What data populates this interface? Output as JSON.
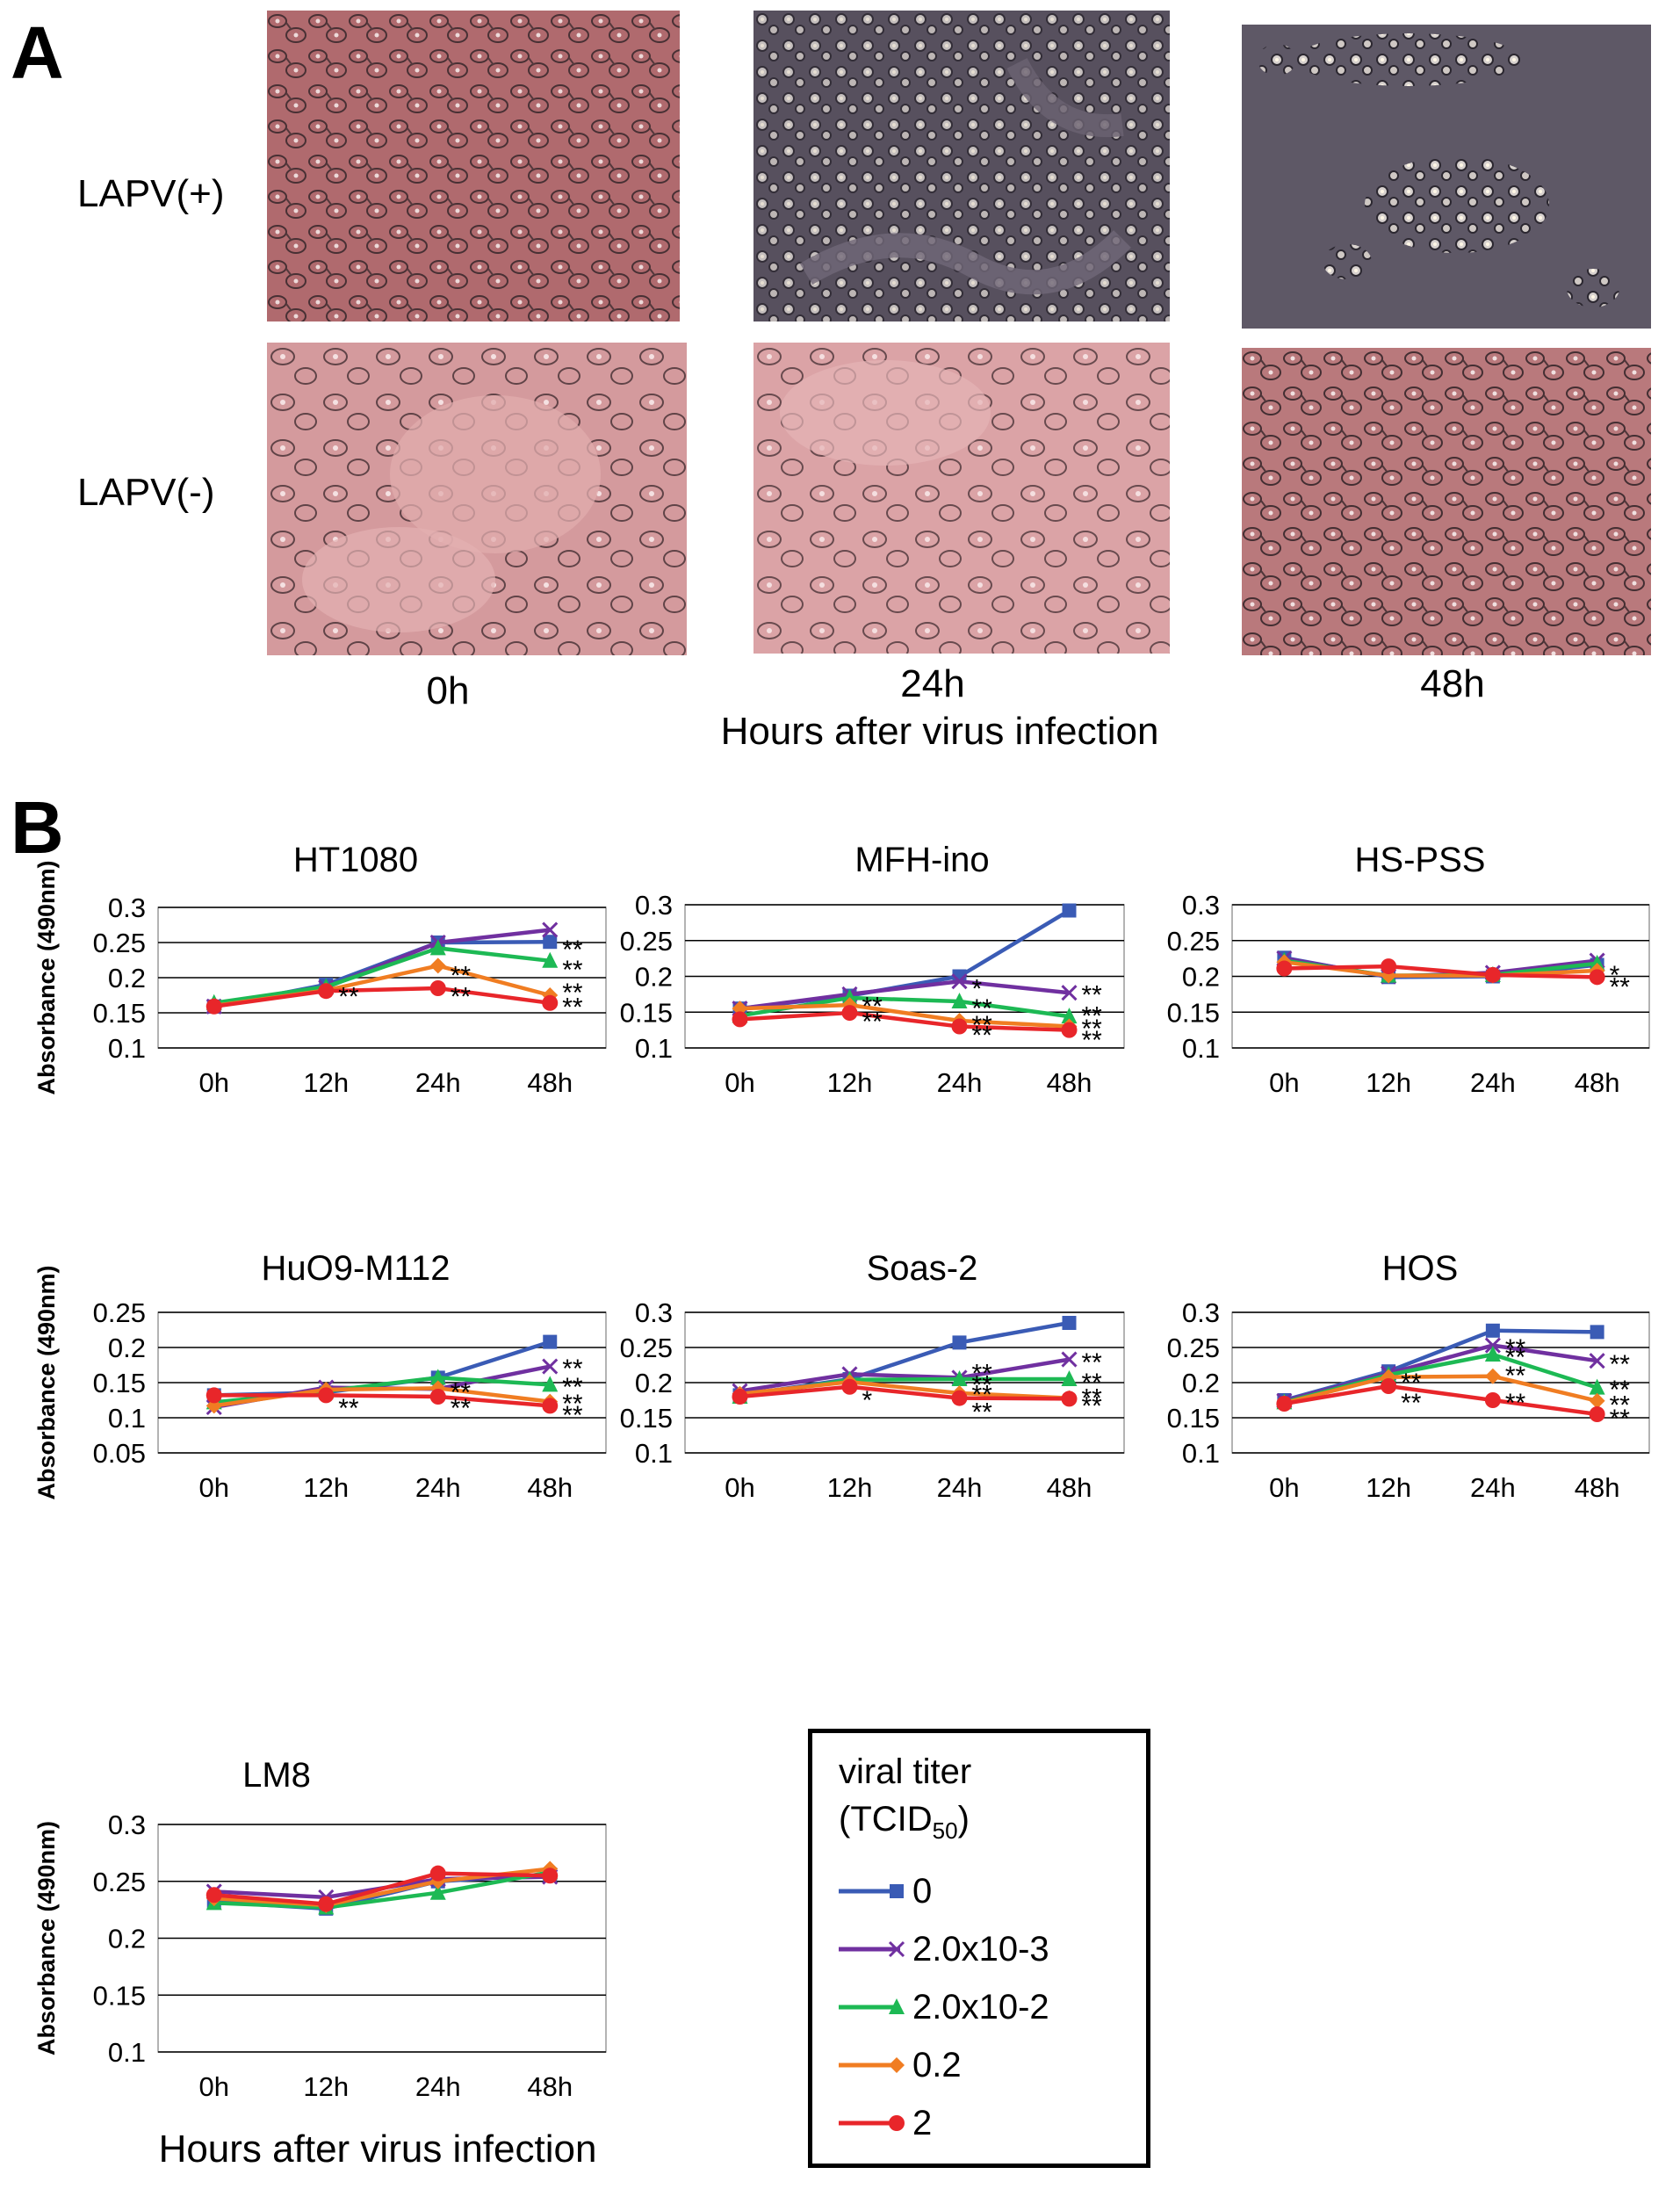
{
  "panel_a": {
    "letter": "A",
    "row_labels": [
      "LAPV(+)",
      "LAPV(-)"
    ],
    "time_labels": [
      "0h",
      "24h",
      "48h"
    ],
    "x_caption": "Hours after virus infection"
  },
  "panel_b": {
    "letter": "B",
    "x_caption": "Hours after virus infection",
    "legend": {
      "title_line1": "viral titer",
      "title_line2_main": "(TCID",
      "title_line2_sub": "50",
      "title_line2_end": ")",
      "entries": [
        "0",
        "2.0x10-3",
        "2.0x10-2",
        "0.2",
        "2"
      ]
    }
  },
  "series_style": [
    {
      "name": "0",
      "color": "#3A5BB5",
      "marker": "square"
    },
    {
      "name": "2.0x10-3",
      "color": "#7030A0",
      "marker": "x"
    },
    {
      "name": "2.0x10-2",
      "color": "#1DB954",
      "marker": "triangle"
    },
    {
      "name": "0.2",
      "color": "#F07D22",
      "marker": "diamond"
    },
    {
      "name": "2",
      "color": "#E8262A",
      "marker": "circle"
    }
  ],
  "chart_data": [
    {
      "type": "line",
      "title": "HT1080",
      "ylabel": "Absorbance (490nm)",
      "categories": [
        "0h",
        "12h",
        "24h",
        "48h"
      ],
      "ylim": [
        0.1,
        0.3
      ],
      "yticks": [
        "0.1",
        "0.15",
        "0.2",
        "0.25",
        "0.3"
      ],
      "series": [
        {
          "name": "0",
          "values": [
            0.159,
            0.19,
            0.25,
            0.251
          ]
        },
        {
          "name": "2.0x10-3",
          "values": [
            0.159,
            0.186,
            0.25,
            0.268
          ]
        },
        {
          "name": "2.0x10-2",
          "values": [
            0.164,
            0.187,
            0.242,
            0.224
          ]
        },
        {
          "name": "0.2",
          "values": [
            0.16,
            0.182,
            0.217,
            0.175
          ]
        },
        {
          "name": "2",
          "values": [
            0.159,
            0.181,
            0.185,
            0.164
          ]
        }
      ],
      "annotations": [
        {
          "cat": 1,
          "y": 0.173,
          "text": "**"
        },
        {
          "cat": 2,
          "y": 0.203,
          "text": "**"
        },
        {
          "cat": 2,
          "y": 0.173,
          "text": "**"
        },
        {
          "cat": 3,
          "y": 0.24,
          "text": "**"
        },
        {
          "cat": 3,
          "y": 0.211,
          "text": "**"
        },
        {
          "cat": 3,
          "y": 0.179,
          "text": "**"
        },
        {
          "cat": 3,
          "y": 0.158,
          "text": "**"
        }
      ]
    },
    {
      "type": "line",
      "title": "MFH-ino",
      "ylabel": "",
      "categories": [
        "0h",
        "12h",
        "24h",
        "48h"
      ],
      "ylim": [
        0.1,
        0.3
      ],
      "yticks": [
        "0.1",
        "0.15",
        "0.2",
        "0.25",
        "0.3"
      ],
      "series": [
        {
          "name": "0",
          "values": [
            0.155,
            0.173,
            0.2,
            0.292
          ]
        },
        {
          "name": "2.0x10-3",
          "values": [
            0.155,
            0.175,
            0.193,
            0.177
          ]
        },
        {
          "name": "2.0x10-2",
          "values": [
            0.145,
            0.17,
            0.165,
            0.144
          ]
        },
        {
          "name": "0.2",
          "values": [
            0.155,
            0.16,
            0.138,
            0.13
          ]
        },
        {
          "name": "2",
          "values": [
            0.14,
            0.149,
            0.13,
            0.125
          ]
        }
      ],
      "annotations": [
        {
          "cat": 2,
          "y": 0.183,
          "text": "*"
        },
        {
          "cat": 1,
          "y": 0.158,
          "text": "**"
        },
        {
          "cat": 1,
          "y": 0.137,
          "text": "**"
        },
        {
          "cat": 2,
          "y": 0.155,
          "text": "**"
        },
        {
          "cat": 2,
          "y": 0.132,
          "text": "**"
        },
        {
          "cat": 2,
          "y": 0.118,
          "text": "**"
        },
        {
          "cat": 3,
          "y": 0.174,
          "text": "**"
        },
        {
          "cat": 3,
          "y": 0.145,
          "text": "**"
        },
        {
          "cat": 3,
          "y": 0.127,
          "text": "**"
        },
        {
          "cat": 3,
          "y": 0.111,
          "text": "**"
        }
      ]
    },
    {
      "type": "line",
      "title": "HS-PSS",
      "ylabel": "",
      "categories": [
        "0h",
        "12h",
        "24h",
        "48h"
      ],
      "ylim": [
        0.1,
        0.3
      ],
      "yticks": [
        "0.1",
        "0.15",
        "0.2",
        "0.25",
        "0.3"
      ],
      "series": [
        {
          "name": "0",
          "values": [
            0.226,
            0.199,
            0.2,
            0.216
          ]
        },
        {
          "name": "2.0x10-3",
          "values": [
            0.225,
            0.2,
            0.205,
            0.222
          ]
        },
        {
          "name": "2.0x10-2",
          "values": [
            0.222,
            0.201,
            0.202,
            0.218
          ]
        },
        {
          "name": "0.2",
          "values": [
            0.22,
            0.201,
            0.201,
            0.208
          ]
        },
        {
          "name": "2",
          "values": [
            0.211,
            0.214,
            0.202,
            0.199
          ]
        }
      ],
      "annotations": [
        {
          "cat": 3,
          "y": 0.202,
          "text": "*"
        },
        {
          "cat": 3,
          "y": 0.185,
          "text": "**"
        }
      ]
    },
    {
      "type": "line",
      "title": "HuO9-M112",
      "ylabel": "Absorbance (490nm)",
      "categories": [
        "0h",
        "12h",
        "24h",
        "48h"
      ],
      "ylim": [
        0.05,
        0.25
      ],
      "yticks": [
        "0.05",
        "0.1",
        "0.15",
        "0.2",
        "0.25"
      ],
      "series": [
        {
          "name": "0",
          "values": [
            0.132,
            0.136,
            0.157,
            0.208
          ]
        },
        {
          "name": "2.0x10-3",
          "values": [
            0.115,
            0.143,
            0.141,
            0.173
          ]
        },
        {
          "name": "2.0x10-2",
          "values": [
            0.122,
            0.138,
            0.157,
            0.147
          ]
        },
        {
          "name": "0.2",
          "values": [
            0.117,
            0.14,
            0.142,
            0.123
          ]
        },
        {
          "name": "2",
          "values": [
            0.132,
            0.132,
            0.13,
            0.117
          ]
        }
      ],
      "annotations": [
        {
          "cat": 1,
          "y": 0.114,
          "text": "**"
        },
        {
          "cat": 2,
          "y": 0.136,
          "text": "**"
        },
        {
          "cat": 2,
          "y": 0.114,
          "text": "**"
        },
        {
          "cat": 3,
          "y": 0.17,
          "text": "**"
        },
        {
          "cat": 3,
          "y": 0.144,
          "text": "**"
        },
        {
          "cat": 3,
          "y": 0.12,
          "text": "**"
        },
        {
          "cat": 3,
          "y": 0.104,
          "text": "**"
        }
      ]
    },
    {
      "type": "line",
      "title": "Soas-2",
      "ylabel": "",
      "categories": [
        "0h",
        "12h",
        "24h",
        "48h"
      ],
      "ylim": [
        0.1,
        0.3
      ],
      "yticks": [
        "0.1",
        "0.15",
        "0.2",
        "0.25",
        "0.3"
      ],
      "series": [
        {
          "name": "0",
          "values": [
            0.182,
            0.205,
            0.257,
            0.285
          ]
        },
        {
          "name": "2.0x10-3",
          "values": [
            0.188,
            0.212,
            0.207,
            0.233
          ]
        },
        {
          "name": "2.0x10-2",
          "values": [
            0.18,
            0.204,
            0.205,
            0.205
          ]
        },
        {
          "name": "0.2",
          "values": [
            0.184,
            0.201,
            0.185,
            0.178
          ]
        },
        {
          "name": "2",
          "values": [
            0.18,
            0.194,
            0.178,
            0.177
          ]
        }
      ],
      "annotations": [
        {
          "cat": 1,
          "y": 0.175,
          "text": "*"
        },
        {
          "cat": 2,
          "y": 0.213,
          "text": "**"
        },
        {
          "cat": 2,
          "y": 0.197,
          "text": "**"
        },
        {
          "cat": 2,
          "y": 0.183,
          "text": "**"
        },
        {
          "cat": 2,
          "y": 0.158,
          "text": "**"
        },
        {
          "cat": 3,
          "y": 0.229,
          "text": "**"
        },
        {
          "cat": 3,
          "y": 0.2,
          "text": "**"
        },
        {
          "cat": 3,
          "y": 0.178,
          "text": "**"
        },
        {
          "cat": 3,
          "y": 0.167,
          "text": "**"
        }
      ]
    },
    {
      "type": "line",
      "title": "HOS",
      "ylabel": "",
      "categories": [
        "0h",
        "12h",
        "24h",
        "48h"
      ],
      "ylim": [
        0.1,
        0.3
      ],
      "yticks": [
        "0.1",
        "0.15",
        "0.2",
        "0.25",
        "0.3"
      ],
      "series": [
        {
          "name": "0",
          "values": [
            0.175,
            0.216,
            0.274,
            0.272
          ]
        },
        {
          "name": "2.0x10-3",
          "values": [
            0.174,
            0.213,
            0.253,
            0.231
          ]
        },
        {
          "name": "2.0x10-2",
          "values": [
            0.172,
            0.211,
            0.24,
            0.193
          ]
        },
        {
          "name": "0.2",
          "values": [
            0.171,
            0.208,
            0.209,
            0.174
          ]
        },
        {
          "name": "2",
          "values": [
            0.17,
            0.195,
            0.175,
            0.155
          ]
        }
      ],
      "annotations": [
        {
          "cat": 1,
          "y": 0.2,
          "text": "**"
        },
        {
          "cat": 1,
          "y": 0.171,
          "text": "**"
        },
        {
          "cat": 2,
          "y": 0.249,
          "text": "**"
        },
        {
          "cat": 2,
          "y": 0.236,
          "text": "**"
        },
        {
          "cat": 2,
          "y": 0.21,
          "text": "**"
        },
        {
          "cat": 2,
          "y": 0.171,
          "text": "**"
        },
        {
          "cat": 3,
          "y": 0.226,
          "text": "**"
        },
        {
          "cat": 3,
          "y": 0.19,
          "text": "**"
        },
        {
          "cat": 3,
          "y": 0.168,
          "text": "**"
        },
        {
          "cat": 3,
          "y": 0.149,
          "text": "**"
        }
      ]
    },
    {
      "type": "line",
      "title": "LM8",
      "ylabel": "Absorbance (490nm)",
      "categories": [
        "0h",
        "12h",
        "24h",
        "48h"
      ],
      "ylim": [
        0.1,
        0.3
      ],
      "yticks": [
        "0.1",
        "0.15",
        "0.2",
        "0.25",
        "0.3"
      ],
      "series": [
        {
          "name": "0",
          "values": [
            0.232,
            0.226,
            0.25,
            0.256
          ]
        },
        {
          "name": "2.0x10-3",
          "values": [
            0.241,
            0.236,
            0.252,
            0.254
          ]
        },
        {
          "name": "2.0x10-2",
          "values": [
            0.231,
            0.227,
            0.24,
            0.258
          ]
        },
        {
          "name": "0.2",
          "values": [
            0.235,
            0.229,
            0.25,
            0.261
          ]
        },
        {
          "name": "2",
          "values": [
            0.238,
            0.23,
            0.257,
            0.255
          ]
        }
      ],
      "annotations": []
    }
  ]
}
